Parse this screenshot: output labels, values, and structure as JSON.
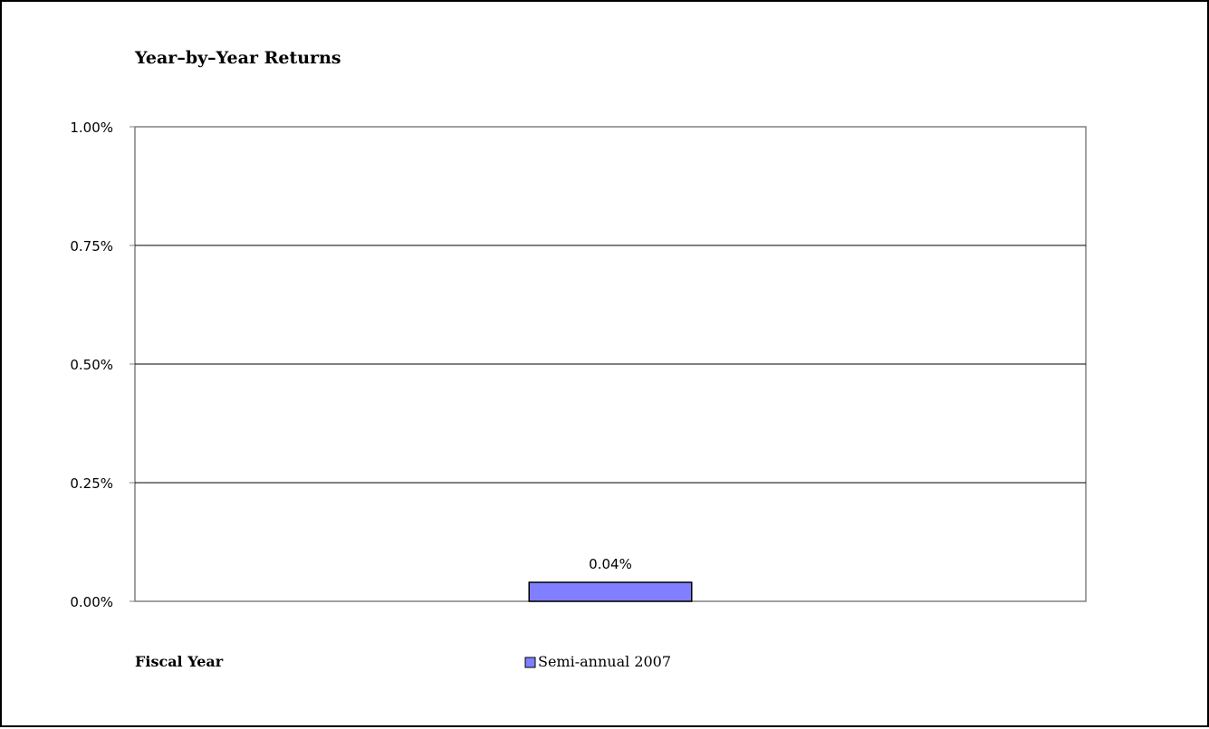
{
  "chart_data": {
    "type": "bar",
    "title": "Year–by–Year Returns",
    "xlabel": "Fiscal Year",
    "ylabel": "",
    "categories": [
      "Semi-annual 2007"
    ],
    "series": [
      {
        "name": "Semi-annual 2007",
        "values": [
          0.04
        ],
        "color": "#7f7fff",
        "data_labels": [
          "0.04%"
        ]
      }
    ],
    "ylim": [
      0,
      1.0
    ],
    "yticks": [
      0.0,
      0.25,
      0.5,
      0.75,
      1.0
    ],
    "ytick_labels": [
      "0.00%",
      "0.25%",
      "0.50%",
      "0.75%",
      "1.00%"
    ],
    "grid": true,
    "legend_position": "bottom"
  }
}
